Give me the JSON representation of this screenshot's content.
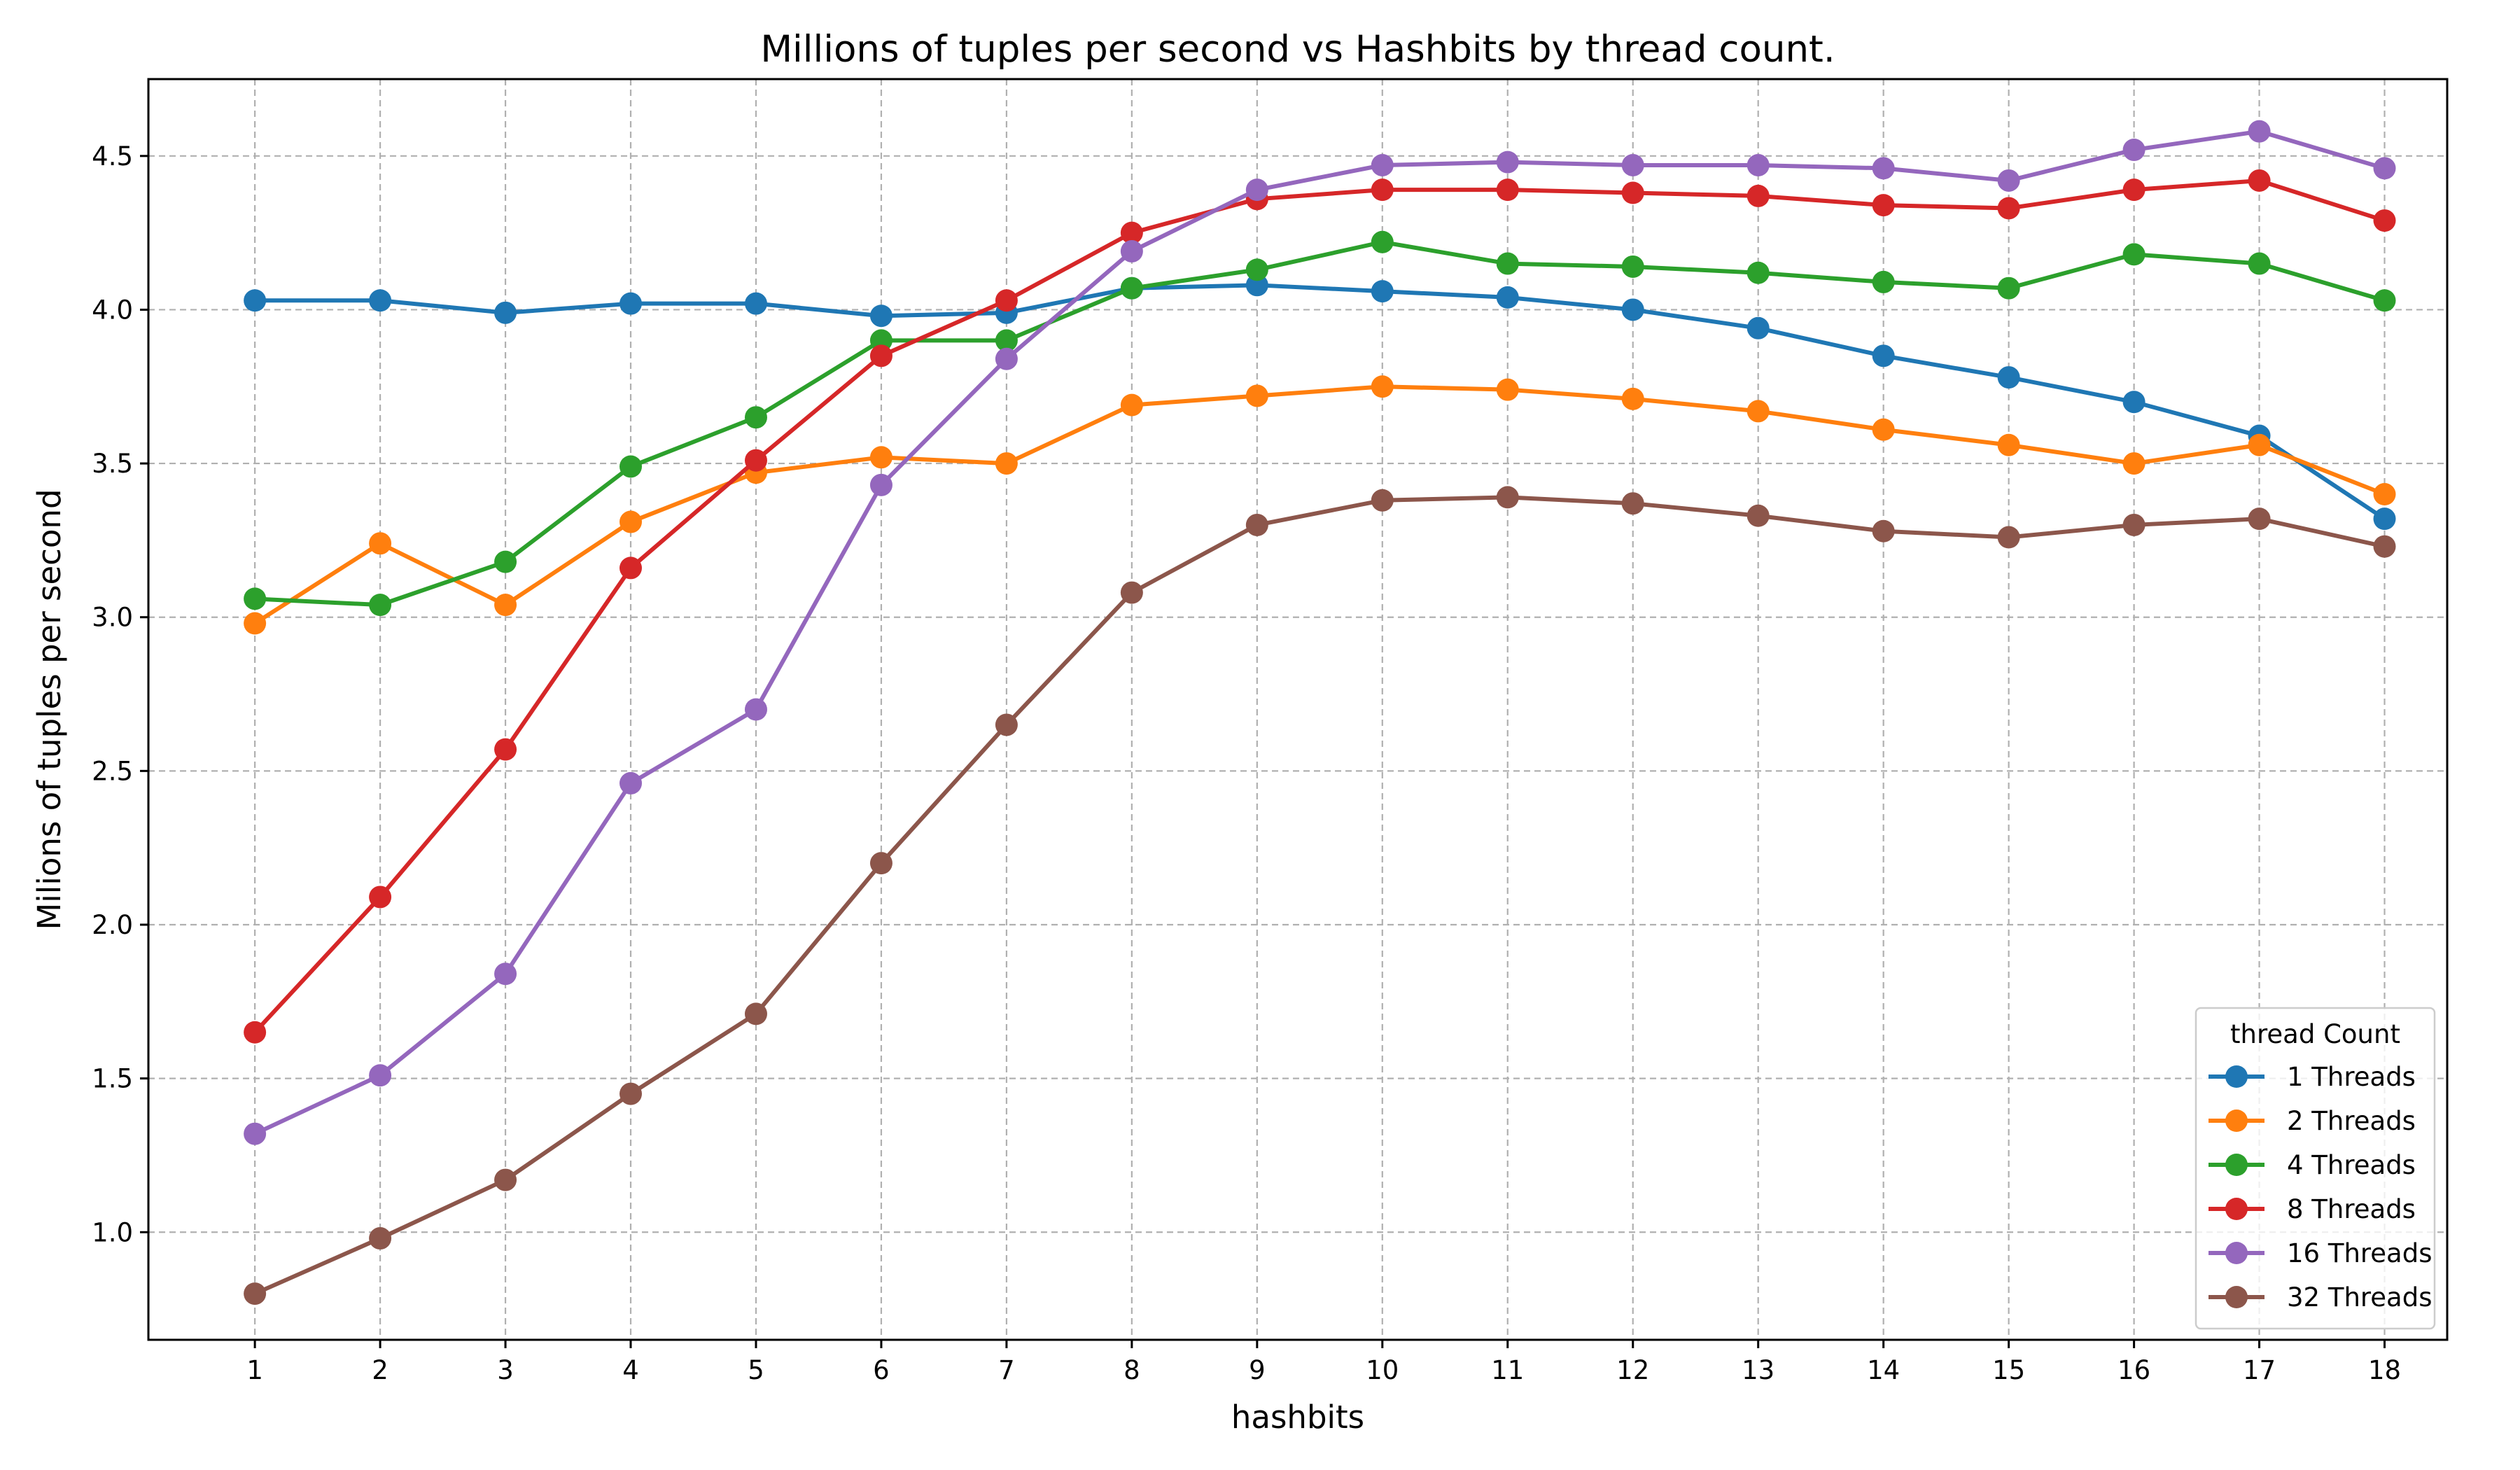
{
  "chart_data": {
    "type": "line",
    "title": "Millions of tuples per second vs Hashbits by thread count.",
    "xlabel": "hashbits",
    "ylabel": "Milions of tuples per second",
    "x": [
      1,
      2,
      3,
      4,
      5,
      6,
      7,
      8,
      9,
      10,
      11,
      12,
      13,
      14,
      15,
      16,
      17,
      18
    ],
    "xlim": [
      0.15,
      18.5
    ],
    "ylim": [
      0.65,
      4.75
    ],
    "yticks": [
      1.0,
      1.5,
      2.0,
      2.5,
      3.0,
      3.5,
      4.0,
      4.5
    ],
    "ytick_labels": [
      "1.0",
      "1.5",
      "2.0",
      "2.5",
      "3.0",
      "3.5",
      "4.0",
      "4.5"
    ],
    "grid": true,
    "legend_title": "thread Count",
    "legend_position": "lower-right",
    "series": [
      {
        "name": "1 Threads",
        "color": "#1f77b4",
        "values": [
          4.03,
          4.03,
          3.99,
          4.02,
          4.02,
          3.98,
          3.99,
          4.07,
          4.08,
          4.06,
          4.04,
          4.0,
          3.94,
          3.85,
          3.78,
          3.7,
          3.59,
          3.32
        ]
      },
      {
        "name": "2 Threads",
        "color": "#ff7f0e",
        "values": [
          2.98,
          3.24,
          3.04,
          3.31,
          3.47,
          3.52,
          3.5,
          3.69,
          3.72,
          3.75,
          3.74,
          3.71,
          3.67,
          3.61,
          3.56,
          3.5,
          3.56,
          3.4
        ]
      },
      {
        "name": "4 Threads",
        "color": "#2ca02c",
        "values": [
          3.06,
          3.04,
          3.18,
          3.49,
          3.65,
          3.9,
          3.9,
          4.07,
          4.13,
          4.22,
          4.15,
          4.14,
          4.12,
          4.09,
          4.07,
          4.18,
          4.15,
          4.03
        ]
      },
      {
        "name": "8 Threads",
        "color": "#d62728",
        "values": [
          1.65,
          2.09,
          2.57,
          3.16,
          3.51,
          3.85,
          4.03,
          4.25,
          4.36,
          4.39,
          4.39,
          4.38,
          4.37,
          4.34,
          4.33,
          4.39,
          4.42,
          4.29
        ]
      },
      {
        "name": "16 Threads",
        "color": "#9467bd",
        "values": [
          1.32,
          1.51,
          1.84,
          2.46,
          2.7,
          3.43,
          3.84,
          4.19,
          4.39,
          4.47,
          4.48,
          4.47,
          4.47,
          4.46,
          4.42,
          4.52,
          4.58,
          4.46
        ]
      },
      {
        "name": "32 Threads",
        "color": "#8c564b",
        "values": [
          0.8,
          0.98,
          1.17,
          1.45,
          1.71,
          2.2,
          2.65,
          3.08,
          3.3,
          3.38,
          3.39,
          3.37,
          3.33,
          3.28,
          3.26,
          3.3,
          3.32,
          3.23
        ]
      }
    ]
  }
}
